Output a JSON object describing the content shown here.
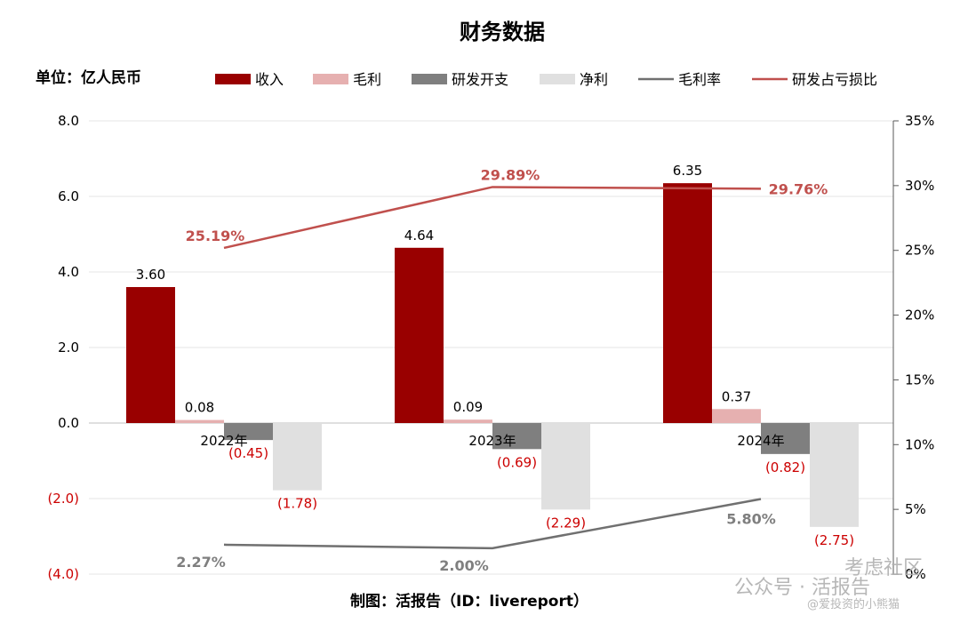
{
  "chart_data": {
    "type": "bar",
    "title": "财务数据",
    "unit_label": "单位：亿人民币",
    "categories": [
      "2022年",
      "2023年",
      "2024年"
    ],
    "series": [
      {
        "name": "收入",
        "kind": "bar",
        "color": "#990000",
        "values": [
          3.6,
          4.64,
          6.35
        ],
        "labels": [
          "3.60",
          "4.64",
          "6.35"
        ]
      },
      {
        "name": "毛利",
        "kind": "bar",
        "color": "#e6b0b0",
        "values": [
          0.08,
          0.09,
          0.37
        ],
        "labels": [
          "0.08",
          "0.09",
          "0.37"
        ]
      },
      {
        "name": "研发开支",
        "kind": "bar",
        "color": "#7f7f7f",
        "values": [
          -0.45,
          -0.69,
          -0.82
        ],
        "labels": [
          "(0.45)",
          "(0.69)",
          "(0.82)"
        ]
      },
      {
        "name": "净利",
        "kind": "bar",
        "color": "#e0e0e0",
        "values": [
          -1.78,
          -2.29,
          -2.75
        ],
        "labels": [
          "(1.78)",
          "(2.29)",
          "(2.75)"
        ]
      },
      {
        "name": "毛利率",
        "kind": "line",
        "axis": "right",
        "color": "#707070",
        "values": [
          2.27,
          2.0,
          5.8
        ],
        "labels": [
          "2.27%",
          "2.00%",
          "5.80%"
        ]
      },
      {
        "name": "研发占亏损比",
        "kind": "line",
        "axis": "right",
        "color": "#c0504d",
        "values": [
          25.19,
          29.89,
          29.76
        ],
        "labels": [
          "25.19%",
          "29.89%",
          "29.76%"
        ]
      }
    ],
    "left_axis": {
      "ylim": [
        -4.0,
        8.0
      ],
      "ticks": [
        "(4.0)",
        "(2.0)",
        "0.0",
        "2.0",
        "4.0",
        "6.0",
        "8.0"
      ],
      "tick_values": [
        -4,
        -2,
        0,
        2,
        4,
        6,
        8
      ]
    },
    "right_axis": {
      "ylim": [
        0,
        35
      ],
      "ticks": [
        "0%",
        "5%",
        "10%",
        "15%",
        "20%",
        "25%",
        "30%",
        "35%"
      ],
      "tick_values": [
        0,
        5,
        10,
        15,
        20,
        25,
        30,
        35
      ]
    },
    "grid": true,
    "legend_position": "top"
  },
  "footer": "制图：活报告（ID：livereport）",
  "watermark": {
    "line1": "公众号 · 活报告",
    "line2": "@爱投资的小熊猫",
    "brand": "考虑社区"
  }
}
